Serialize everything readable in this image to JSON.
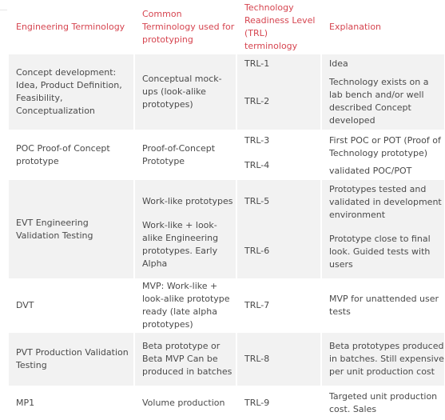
{
  "headers": [
    "Engineering Terminology",
    "Common Terminology used for prototyping",
    "Technology Readiness Level (TRL) terminology",
    "Explanation"
  ],
  "rows": [
    {
      "term": "Concept development: Idea, Product Definition, Feasibility, Conceptualization",
      "proto": [
        "Conceptual mock-ups (look-alike prototypes)"
      ],
      "trl": [
        "TRL-1",
        "TRL-2"
      ],
      "expl": [
        "Idea",
        "Technology exists on a lab bench and/or well described Concept developed"
      ]
    },
    {
      "term": "POC Proof-of Concept prototype",
      "proto": [
        "Proof-of-Concept Prototype"
      ],
      "trl": [
        "TRL-3",
        "TRL-4"
      ],
      "expl": [
        "First POC or POT (Proof of Technology prototype)",
        "validated POC/POT"
      ]
    },
    {
      "term": "EVT Engineering Validation Testing",
      "proto": [
        "Work-like prototypes",
        "Work-like + look-alike Engineering prototypes. Early Alpha"
      ],
      "trl": [
        "TRL-5",
        "TRL-6"
      ],
      "expl": [
        "Prototypes tested and validated in development environment",
        "Prototype close to final look. Guided tests with users"
      ]
    },
    {
      "term": "DVT",
      "proto": [
        "MVP: Work-like + look-alike prototype ready (late alpha prototypes)"
      ],
      "trl": [
        "TRL-7"
      ],
      "expl": [
        "MVP for unattended user tests"
      ]
    },
    {
      "term": "PVT Production Validation Testing",
      "proto": [
        "Beta prototype or Beta MVP Can be produced in batches"
      ],
      "trl": [
        "TRL-8"
      ],
      "expl": [
        "Beta prototypes produced in batches. Still expensive per unit production cost"
      ]
    },
    {
      "term": "MP1",
      "proto": [
        "Volume production"
      ],
      "trl": [
        "TRL-9"
      ],
      "expl": [
        "Targeted unit production cost. Sales"
      ]
    }
  ]
}
